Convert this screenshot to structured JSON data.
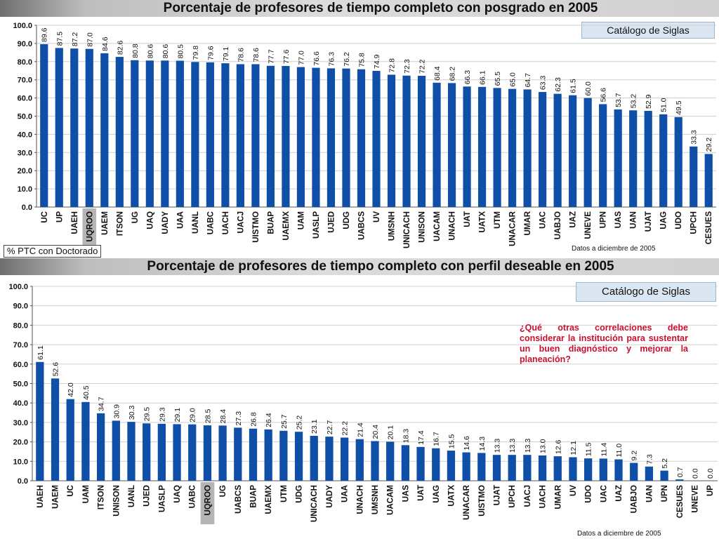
{
  "colors": {
    "bar": "#0f4fa8",
    "highlight": "#b5b5b5",
    "question": "#c8102e"
  },
  "panels": [
    {
      "title": "Porcentaje de profesores de tiempo completo con posgrado en 2005",
      "catalog_label": "Catálogo de Siglas",
      "metric_label": "% PTC con Doctorado",
      "date_note": "Datos a diciembre de 2005"
    },
    {
      "title": "Porcentaje de profesores de tiempo completo con perfil deseable en 2005",
      "catalog_label": "Catálogo de Siglas",
      "question": "¿Qué otras correlaciones debe considerar la institución para sustentar un buen diagnóstico y mejorar la planeación?",
      "date_note": "Datos a diciembre de 2005"
    }
  ],
  "chart_data": [
    {
      "type": "bar",
      "title": "Porcentaje de profesores de tiempo completo con posgrado en 2005",
      "ylim": [
        0,
        100
      ],
      "yticks": [
        "0.0",
        "10.0",
        "20.0",
        "30.0",
        "40.0",
        "50.0",
        "60.0",
        "70.0",
        "80.0",
        "90.0",
        "100.0"
      ],
      "highlight": "UQROO",
      "categories": [
        "UC",
        "UP",
        "UAEH",
        "UQROO",
        "UAEM",
        "ITSON",
        "UG",
        "UAQ",
        "UADY",
        "UAA",
        "UANL",
        "UABC",
        "UACH",
        "UACJ",
        "UISTMO",
        "BUAP",
        "UAEMX",
        "UAM",
        "UASLP",
        "UJED",
        "UDG",
        "UABCS",
        "UV",
        "UMSNH",
        "UNICACH",
        "UNISON",
        "UACAM",
        "UNACH",
        "UAT",
        "UATX",
        "UTM",
        "UNACAR",
        "UMAR",
        "UAC",
        "UABJO",
        "UAZ",
        "UNEVE",
        "UPN",
        "UAS",
        "UAN",
        "UJAT",
        "UAG",
        "UDO",
        "UPCH",
        "CESUES"
      ],
      "values": [
        89.6,
        87.5,
        87.2,
        87.0,
        84.6,
        82.6,
        80.8,
        80.6,
        80.6,
        80.5,
        79.8,
        79.6,
        79.1,
        78.6,
        78.6,
        77.7,
        77.6,
        77.0,
        76.6,
        76.3,
        76.2,
        75.8,
        74.9,
        72.8,
        72.3,
        72.2,
        68.4,
        68.2,
        66.3,
        66.1,
        65.5,
        65.0,
        64.7,
        63.3,
        62.3,
        61.5,
        60.0,
        56.6,
        53.7,
        53.2,
        52.9,
        51.0,
        49.5,
        33.3,
        29.2
      ],
      "labels": [
        "89.6",
        "87.5",
        "87.2",
        "87.0",
        "84.6",
        "82.6",
        "80.8",
        "80.6",
        "80.6",
        "80.5",
        "79.8",
        "79.6",
        "79.1",
        "78.6",
        "78.6",
        "77.7",
        "77.6",
        "77.0",
        "76.6",
        "76.3",
        "76.2",
        "75.8",
        "74.9",
        "72.8",
        "72.3",
        "72.2",
        "68.4",
        "68.2",
        "66.3",
        "66.1",
        "65.5",
        "65.0",
        "64.7",
        "63.3",
        "62.3",
        "61.5",
        "60.0",
        "56.6",
        "53.7",
        "53.2",
        "52.9",
        "51.0",
        "49.5",
        "33.3",
        "29.2"
      ]
    },
    {
      "type": "bar",
      "title": "Porcentaje de profesores de tiempo completo con perfil deseable en 2005",
      "ylim": [
        0,
        100
      ],
      "yticks": [
        "0.0",
        "10.0",
        "20.0",
        "30.0",
        "40.0",
        "50.0",
        "60.0",
        "70.0",
        "80.0",
        "90.0",
        "100.0"
      ],
      "highlight": "UQROO",
      "categories": [
        "UAEH",
        "UAEM",
        "UC",
        "UAM",
        "ITSON",
        "UNISON",
        "UANL",
        "UJED",
        "UASLP",
        "UAQ",
        "UABC",
        "UQROO",
        "UG",
        "UABCS",
        "BUAP",
        "UAEMX",
        "UTM",
        "UDG",
        "UNICACH",
        "UADY",
        "UAA",
        "UNACH",
        "UMSNH",
        "UACAM",
        "UAS",
        "UAT",
        "UAG",
        "UATX",
        "UNACAR",
        "UISTMO",
        "UJAT",
        "UPCH",
        "UACJ",
        "UACH",
        "UMAR",
        "UV",
        "UDO",
        "UAC",
        "UAZ",
        "UABJO",
        "UAN",
        "UPN",
        "CESUES",
        "UNEVE",
        "UP"
      ],
      "values": [
        61.1,
        52.6,
        42.0,
        40.5,
        34.7,
        30.9,
        30.3,
        29.5,
        29.3,
        29.1,
        29.0,
        28.5,
        28.4,
        27.3,
        26.8,
        26.4,
        25.7,
        25.2,
        23.1,
        22.7,
        22.2,
        21.4,
        20.4,
        20.1,
        18.3,
        17.4,
        16.7,
        15.5,
        14.6,
        14.3,
        13.3,
        13.3,
        13.3,
        13.0,
        12.6,
        12.1,
        11.5,
        11.4,
        11.0,
        9.2,
        7.3,
        5.2,
        0.7,
        0.0,
        0.0
      ],
      "labels": [
        "61.1",
        "52.6",
        "42.0",
        "40.5",
        "34.7",
        "30.9",
        "30.3",
        "29.5",
        "29.3",
        "29.1",
        "29.0",
        "28.5",
        "28.4",
        "27.3",
        "26.8",
        "26.4",
        "25.7",
        "25.2",
        "23.1",
        "22.7",
        "22.2",
        "21.4",
        "20.4",
        "20.1",
        "18.3",
        "17.4",
        "16.7",
        "15.5",
        "14.6",
        "14.3",
        "13.3",
        "13.3",
        "13.3",
        "13.0",
        "12.6",
        "12.1",
        "11.5",
        "11.4",
        "11.0",
        "9.2",
        "7.3",
        "5.2",
        "0.7",
        "0.0",
        "0.0"
      ]
    }
  ]
}
